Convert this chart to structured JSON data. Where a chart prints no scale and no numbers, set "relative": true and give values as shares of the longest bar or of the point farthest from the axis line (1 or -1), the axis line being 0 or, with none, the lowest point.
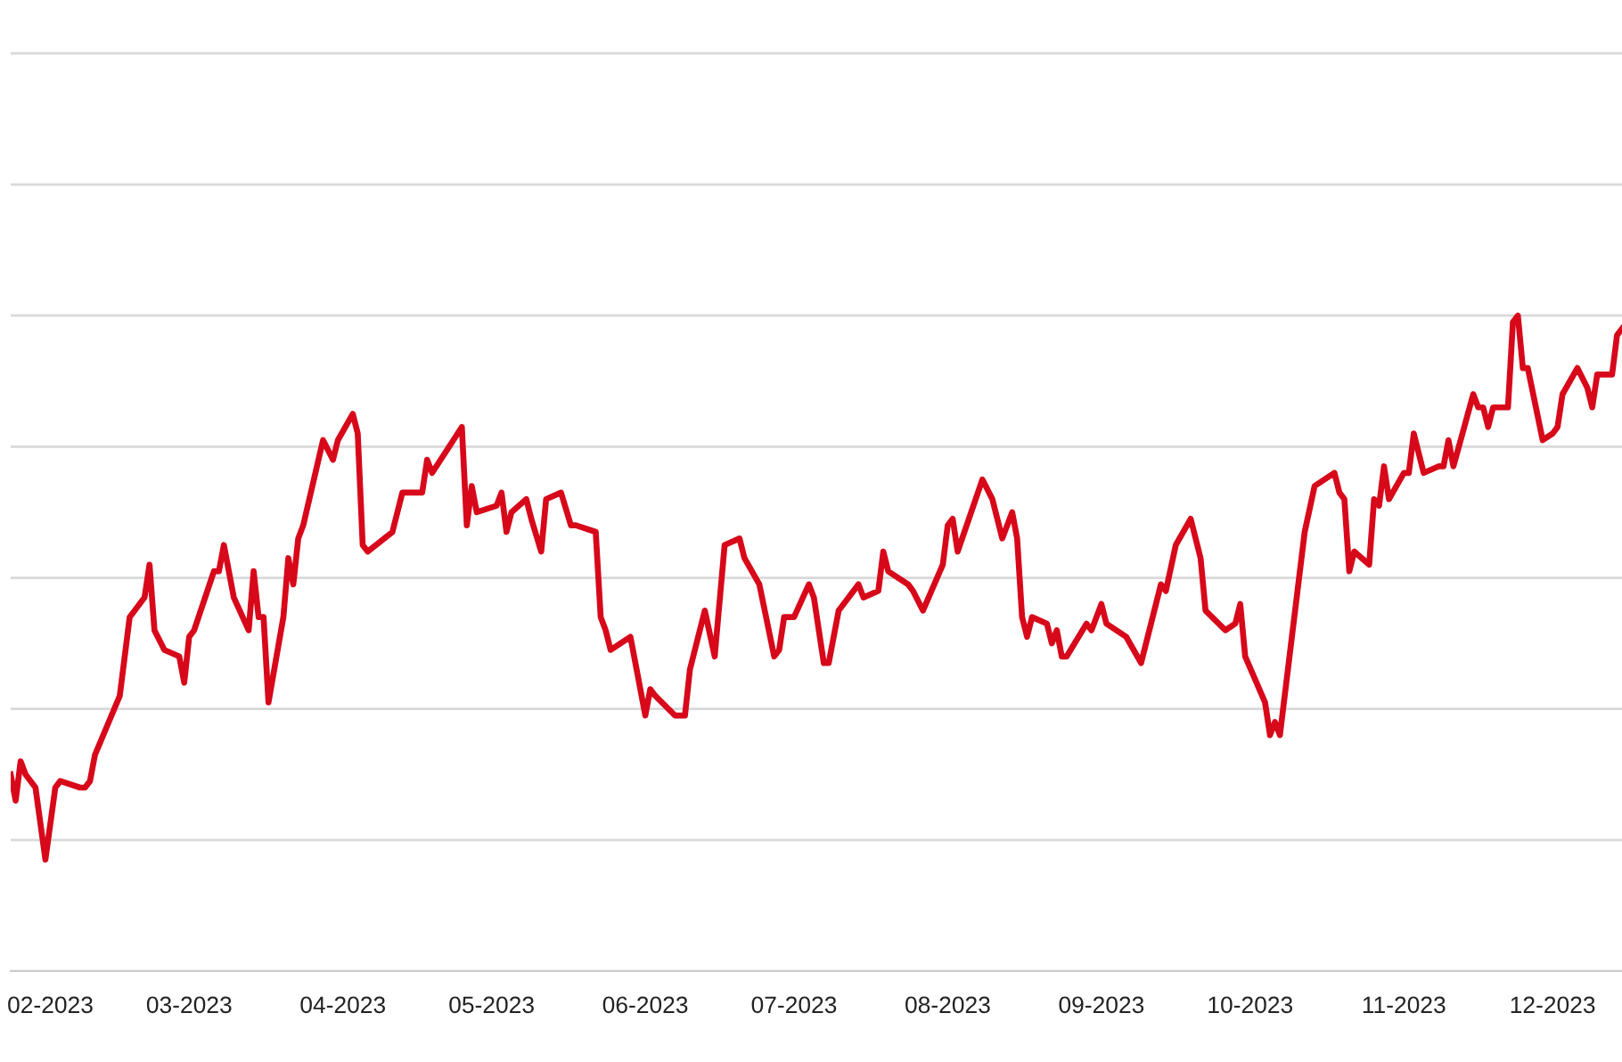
{
  "chart_data": {
    "type": "line",
    "relative": true,
    "tick_labels": "x",
    "grid": "y",
    "legend": false,
    "marker": "none",
    "line_style": "solid",
    "xlim": [
      "2023-01-24",
      "2023-12-15"
    ],
    "xticks": [
      {
        "value": "2023-02-01",
        "label": "02-2023"
      },
      {
        "value": "2023-03-01",
        "label": "03-2023"
      },
      {
        "value": "2023-04-01",
        "label": "04-2023"
      },
      {
        "value": "2023-05-01",
        "label": "05-2023"
      },
      {
        "value": "2023-06-01",
        "label": "06-2023"
      },
      {
        "value": "2023-07-01",
        "label": "07-2023"
      },
      {
        "value": "2023-08-01",
        "label": "08-2023"
      },
      {
        "value": "2023-09-01",
        "label": "09-2023"
      },
      {
        "value": "2023-10-01",
        "label": "10-2023"
      },
      {
        "value": "2023-11-01",
        "label": "11-2023"
      },
      {
        "value": "2023-12-01",
        "label": "12-2023"
      }
    ],
    "x": [
      "2023-01-24",
      "2023-01-25",
      "2023-01-26",
      "2023-01-27",
      "2023-01-29",
      "2023-01-31",
      "2023-02-02",
      "2023-02-03",
      "2023-02-07",
      "2023-02-08",
      "2023-02-09",
      "2023-02-10",
      "2023-02-15",
      "2023-02-17",
      "2023-02-20",
      "2023-02-21",
      "2023-02-22",
      "2023-02-24",
      "2023-02-27",
      "2023-02-28",
      "2023-03-01",
      "2023-03-02",
      "2023-03-06",
      "2023-03-07",
      "2023-03-08",
      "2023-03-10",
      "2023-03-13",
      "2023-03-14",
      "2023-03-15",
      "2023-03-16",
      "2023-03-17",
      "2023-03-20",
      "2023-03-21",
      "2023-03-22",
      "2023-03-23",
      "2023-03-24",
      "2023-03-28",
      "2023-03-30",
      "2023-03-31",
      "2023-04-03",
      "2023-04-04",
      "2023-04-05",
      "2023-04-06",
      "2023-04-11",
      "2023-04-13",
      "2023-04-14",
      "2023-04-17",
      "2023-04-18",
      "2023-04-19",
      "2023-04-25",
      "2023-04-26",
      "2023-04-27",
      "2023-04-28",
      "2023-05-02",
      "2023-05-03",
      "2023-05-04",
      "2023-05-05",
      "2023-05-08",
      "2023-05-09",
      "2023-05-11",
      "2023-05-12",
      "2023-05-15",
      "2023-05-17",
      "2023-05-18",
      "2023-05-22",
      "2023-05-23",
      "2023-05-24",
      "2023-05-25",
      "2023-05-29",
      "2023-05-30",
      "2023-06-01",
      "2023-06-02",
      "2023-06-03",
      "2023-06-07",
      "2023-06-09",
      "2023-06-10",
      "2023-06-13",
      "2023-06-15",
      "2023-06-17",
      "2023-06-20",
      "2023-06-21",
      "2023-06-24",
      "2023-06-27",
      "2023-06-28",
      "2023-06-29",
      "2023-07-01",
      "2023-07-04",
      "2023-07-05",
      "2023-07-07",
      "2023-07-08",
      "2023-07-10",
      "2023-07-11",
      "2023-07-14",
      "2023-07-15",
      "2023-07-18",
      "2023-07-19",
      "2023-07-20",
      "2023-07-24",
      "2023-07-25",
      "2023-07-27",
      "2023-07-31",
      "2023-08-01",
      "2023-08-02",
      "2023-08-03",
      "2023-08-08",
      "2023-08-10",
      "2023-08-12",
      "2023-08-14",
      "2023-08-15",
      "2023-08-16",
      "2023-08-17",
      "2023-08-18",
      "2023-08-21",
      "2023-08-22",
      "2023-08-23",
      "2023-08-24",
      "2023-08-25",
      "2023-08-29",
      "2023-08-30",
      "2023-09-01",
      "2023-09-02",
      "2023-09-06",
      "2023-09-09",
      "2023-09-13",
      "2023-09-14",
      "2023-09-16",
      "2023-09-19",
      "2023-09-21",
      "2023-09-22",
      "2023-09-26",
      "2023-09-28",
      "2023-09-29",
      "2023-09-30",
      "2023-10-04",
      "2023-10-05",
      "2023-10-06",
      "2023-10-07",
      "2023-10-12",
      "2023-10-14",
      "2023-10-18",
      "2023-10-19",
      "2023-10-20",
      "2023-10-21",
      "2023-10-22",
      "2023-10-25",
      "2023-10-26",
      "2023-10-27",
      "2023-10-28",
      "2023-10-29",
      "2023-11-01",
      "2023-11-02",
      "2023-11-03",
      "2023-11-05",
      "2023-11-08",
      "2023-11-09",
      "2023-11-10",
      "2023-11-11",
      "2023-11-15",
      "2023-11-16",
      "2023-11-17",
      "2023-11-18",
      "2023-11-19",
      "2023-11-22",
      "2023-11-23",
      "2023-11-24",
      "2023-11-25",
      "2023-11-26",
      "2023-11-29",
      "2023-12-01",
      "2023-12-02",
      "2023-12-03",
      "2023-12-06",
      "2023-12-08",
      "2023-12-09",
      "2023-12-10",
      "2023-12-13",
      "2023-12-14",
      "2023-12-15"
    ],
    "series": [
      {
        "color": "#d7081a",
        "values": [
          0.3,
          0.26,
          0.32,
          0.3,
          0.28,
          0.17,
          0.28,
          0.29,
          0.28,
          0.28,
          0.29,
          0.33,
          0.42,
          0.54,
          0.57,
          0.62,
          0.52,
          0.49,
          0.48,
          0.44,
          0.51,
          0.52,
          0.61,
          0.61,
          0.65,
          0.57,
          0.52,
          0.61,
          0.54,
          0.54,
          0.41,
          0.54,
          0.63,
          0.59,
          0.66,
          0.68,
          0.81,
          0.78,
          0.81,
          0.85,
          0.82,
          0.65,
          0.64,
          0.67,
          0.73,
          0.73,
          0.73,
          0.78,
          0.76,
          0.83,
          0.68,
          0.74,
          0.7,
          0.71,
          0.73,
          0.67,
          0.7,
          0.72,
          0.69,
          0.64,
          0.72,
          0.73,
          0.68,
          0.68,
          0.67,
          0.54,
          0.52,
          0.49,
          0.51,
          0.47,
          0.39,
          0.43,
          0.42,
          0.39,
          0.39,
          0.46,
          0.55,
          0.48,
          0.65,
          0.66,
          0.63,
          0.59,
          0.48,
          0.49,
          0.54,
          0.54,
          0.59,
          0.57,
          0.47,
          0.47,
          0.55,
          0.56,
          0.59,
          0.57,
          0.58,
          0.64,
          0.61,
          0.59,
          0.58,
          0.55,
          0.62,
          0.68,
          0.69,
          0.64,
          0.75,
          0.72,
          0.66,
          0.7,
          0.66,
          0.54,
          0.51,
          0.54,
          0.53,
          0.5,
          0.52,
          0.48,
          0.48,
          0.53,
          0.52,
          0.56,
          0.53,
          0.51,
          0.47,
          0.59,
          0.58,
          0.65,
          0.69,
          0.63,
          0.55,
          0.52,
          0.53,
          0.56,
          0.48,
          0.41,
          0.36,
          0.38,
          0.36,
          0.67,
          0.74,
          0.76,
          0.73,
          0.72,
          0.61,
          0.64,
          0.62,
          0.72,
          0.71,
          0.77,
          0.72,
          0.76,
          0.76,
          0.82,
          0.76,
          0.77,
          0.77,
          0.81,
          0.77,
          0.88,
          0.86,
          0.86,
          0.83,
          0.86,
          0.86,
          0.99,
          1.0,
          0.92,
          0.92,
          0.81,
          0.82,
          0.83,
          0.88,
          0.92,
          0.89,
          0.86,
          0.91,
          0.91,
          0.97,
          0.98
        ]
      }
    ]
  }
}
